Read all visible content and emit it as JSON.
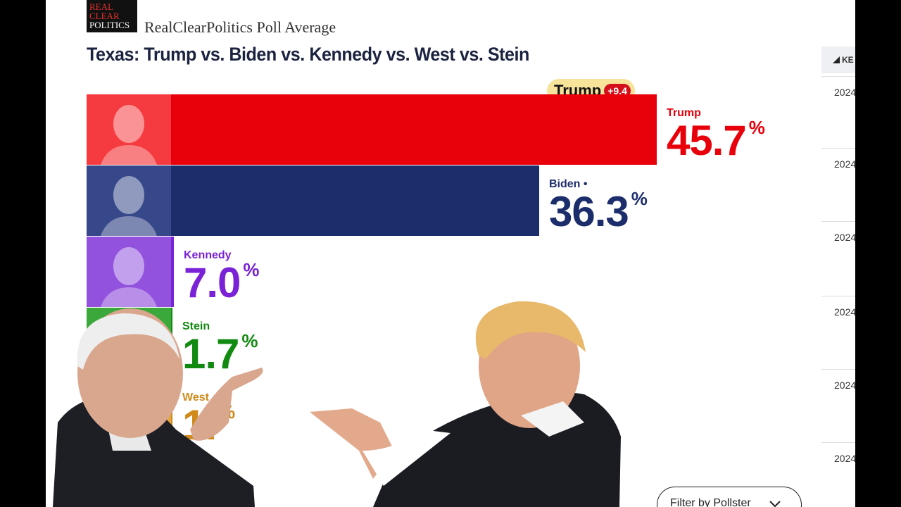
{
  "brand": {
    "logo_lines": [
      "REAL",
      "CLEAR",
      "POLITICS"
    ],
    "name": "RealClearPolitics Poll Average"
  },
  "title": "Texas: Trump vs. Biden vs. Kennedy vs. West vs. Stein",
  "lead": {
    "candidate": "Trump",
    "spread": "+9.4"
  },
  "chart_data": {
    "type": "bar",
    "orientation": "horizontal",
    "categories": [
      "Trump",
      "Biden •",
      "Kennedy",
      "Stein",
      "West"
    ],
    "values": [
      45.7,
      36.3,
      7.0,
      1.7,
      1.0
    ],
    "value_labels": [
      "45.7",
      "36.3",
      "7.0",
      "1.7",
      "1."
    ],
    "unit": "%",
    "colors": [
      "#e8000b",
      "#1c2d6b",
      "#7a22d6",
      "#128a12",
      "#d08a1a"
    ],
    "bar_scale_max": 45.7
  },
  "right_panel": {
    "header": "KE",
    "rows": [
      "2024",
      "2024",
      "2024",
      "2024",
      "2024",
      "2024"
    ]
  },
  "filter": {
    "label": "Filter by Pollster"
  },
  "icons": [
    "chevron-down-icon",
    "triangle-icon"
  ]
}
